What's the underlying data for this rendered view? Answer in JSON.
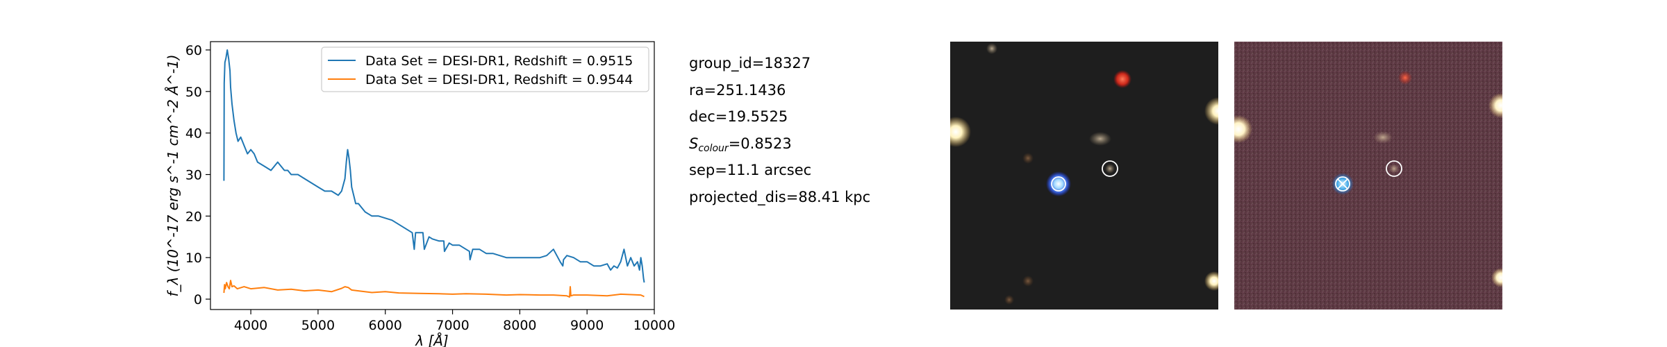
{
  "chart_data": {
    "type": "line",
    "xlabel": "λ [Å]",
    "ylabel": "f_λ (10^-17 erg s^-1 cm^-2 Å^-1)",
    "xlim": [
      3400,
      10000
    ],
    "ylim": [
      -2.5,
      62
    ],
    "x_ticks": [
      4000,
      5000,
      6000,
      7000,
      8000,
      9000,
      10000
    ],
    "y_ticks": [
      0,
      10,
      20,
      30,
      40,
      50,
      60
    ],
    "grid": false,
    "legend_position": "top-right",
    "series": [
      {
        "name": "Data Set = DESI-DR1, Redshift = 0.9515",
        "color": "#1f77b4",
        "x": [
          3600,
          3605,
          3615,
          3630,
          3650,
          3670,
          3690,
          3700,
          3720,
          3750,
          3780,
          3810,
          3850,
          3900,
          3950,
          4000,
          4050,
          4100,
          4200,
          4300,
          4400,
          4500,
          4550,
          4600,
          4700,
          4800,
          4900,
          5000,
          5100,
          5200,
          5300,
          5350,
          5400,
          5420,
          5440,
          5460,
          5480,
          5500,
          5530,
          5560,
          5600,
          5650,
          5700,
          5800,
          5900,
          6000,
          6100,
          6200,
          6300,
          6400,
          6430,
          6450,
          6500,
          6560,
          6580,
          6650,
          6700,
          6800,
          6870,
          6880,
          6950,
          7000,
          7100,
          7200,
          7250,
          7260,
          7300,
          7400,
          7500,
          7600,
          7700,
          7800,
          7900,
          8000,
          8100,
          8200,
          8300,
          8400,
          8500,
          8600,
          8640,
          8650,
          8700,
          8800,
          8900,
          9000,
          9100,
          9200,
          9300,
          9350,
          9400,
          9450,
          9500,
          9550,
          9600,
          9650,
          9700,
          9750,
          9780,
          9800,
          9820,
          9840,
          9850
        ],
        "y": [
          28.5,
          52,
          57,
          58,
          60,
          58,
          55,
          51,
          47,
          43,
          40,
          38,
          39,
          37,
          35,
          36,
          35,
          33,
          32,
          31,
          33,
          31,
          31,
          30,
          30,
          29,
          28,
          27,
          26,
          26,
          25,
          26,
          29,
          33,
          36,
          34,
          31,
          27,
          25,
          23,
          23,
          22,
          21,
          20,
          20,
          19.5,
          19,
          18,
          17,
          16,
          12,
          16,
          16,
          16,
          12,
          15,
          14.5,
          14,
          14,
          11.5,
          13.5,
          13,
          13,
          12,
          11.5,
          9.5,
          12,
          12,
          11,
          11,
          10.5,
          10,
          10,
          10,
          10,
          10,
          10,
          10.5,
          12,
          9,
          8,
          9.5,
          10.5,
          10,
          9,
          9,
          8,
          8,
          8.5,
          7,
          8,
          7.5,
          9,
          12,
          8,
          10,
          8,
          9,
          7,
          10,
          8,
          5,
          4
        ]
      },
      {
        "name": "Data Set = DESI-DR1, Redshift = 0.9544",
        "color": "#ff7f0e",
        "x": [
          3600,
          3610,
          3620,
          3640,
          3660,
          3680,
          3700,
          3720,
          3750,
          3800,
          3900,
          4000,
          4200,
          4400,
          4600,
          4800,
          5000,
          5200,
          5350,
          5400,
          5450,
          5500,
          5600,
          5800,
          6000,
          6200,
          6500,
          6800,
          7000,
          7200,
          7500,
          7800,
          8000,
          8300,
          8500,
          8700,
          8740,
          8750,
          8760,
          8800,
          9000,
          9300,
          9500,
          9800,
          9850
        ],
        "y": [
          1.5,
          3.5,
          2.5,
          4,
          3,
          2.5,
          4.5,
          3,
          3.2,
          2.5,
          3,
          2.5,
          2.8,
          2.2,
          2.4,
          2,
          2.2,
          1.8,
          2.6,
          3,
          2.8,
          2.2,
          2,
          1.6,
          1.8,
          1.5,
          1.4,
          1.3,
          1.2,
          1.3,
          1.2,
          1,
          1.1,
          1,
          1,
          0.8,
          0.5,
          3,
          0.8,
          1,
          1,
          0.8,
          1.2,
          1,
          0.6
        ]
      }
    ]
  },
  "info": {
    "group_id": "group_id=18327",
    "ra": "ra=251.1436",
    "dec": "dec=19.5525",
    "s_colour_symbol": "S",
    "s_colour_subscript": "colour",
    "s_colour_value": "=0.8523",
    "sep": "sep=11.1 arcsec",
    "projected_dis": "projected_dis=88.41 kpc"
  },
  "cutouts": [
    {
      "name": "optical",
      "background": "#202020",
      "marker_color": "#ffffff"
    },
    {
      "name": "infrared",
      "background": "#5e3a44",
      "marker_color": "#ffffff"
    }
  ]
}
